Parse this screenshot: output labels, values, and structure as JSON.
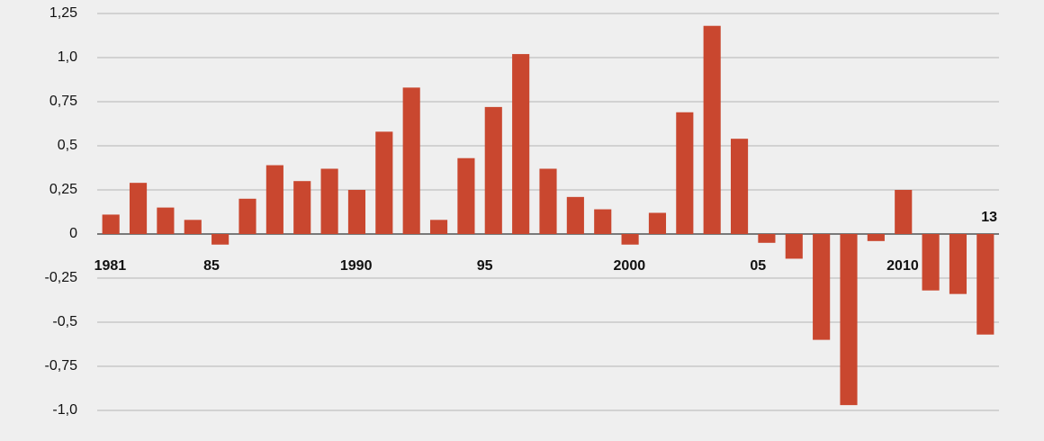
{
  "chart_data": {
    "type": "bar",
    "categories": [
      "1981",
      null,
      null,
      null,
      "85",
      null,
      null,
      null,
      null,
      "1990",
      null,
      null,
      null,
      null,
      "95",
      null,
      null,
      null,
      null,
      "2000",
      null,
      null,
      null,
      null,
      "05",
      null,
      null,
      null,
      null,
      "2010",
      null,
      null,
      "13"
    ],
    "values": [
      0.11,
      0.29,
      0.15,
      0.08,
      -0.06,
      0.2,
      0.39,
      0.3,
      0.37,
      0.25,
      0.58,
      0.83,
      0.08,
      0.43,
      0.72,
      1.02,
      0.37,
      0.21,
      0.14,
      -0.06,
      0.12,
      0.69,
      1.18,
      0.54,
      -0.05,
      -0.14,
      -0.6,
      -0.97,
      -0.04,
      0.25,
      -0.32,
      -0.34,
      -0.57
    ],
    "color": "#c9472f",
    "ylim": [
      -1.0,
      1.25
    ],
    "yticks": [
      {
        "value": -1.0,
        "label": "-1,0"
      },
      {
        "value": -0.75,
        "label": "-0,75"
      },
      {
        "value": -0.5,
        "label": "-0,5"
      },
      {
        "value": -0.25,
        "label": "-0,25"
      },
      0,
      {
        "value": 0.25,
        "label": "0,25"
      },
      {
        "value": 0.5,
        "label": "0,5"
      },
      {
        "value": 0.75,
        "label": "0,75"
      },
      {
        "value": 1.0,
        "label": "1,0"
      },
      {
        "value": 1.25,
        "label": "1,25"
      }
    ],
    "grid": true
  }
}
